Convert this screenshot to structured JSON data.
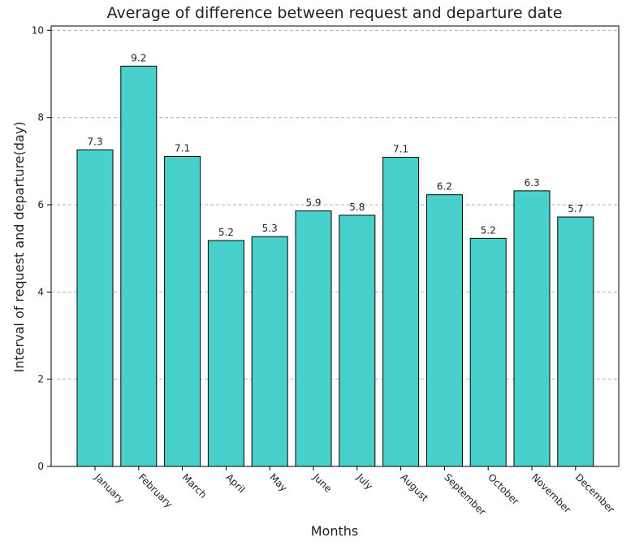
{
  "chart_data": {
    "type": "bar",
    "title": "Average of difference between request and departure date",
    "xlabel": "Months",
    "ylabel": "Interval of request and departure(day)",
    "categories": [
      "January",
      "February",
      "March",
      "April",
      "May",
      "June",
      "July",
      "August",
      "September",
      "October",
      "November",
      "December"
    ],
    "values": [
      7.26,
      9.18,
      7.11,
      5.18,
      5.27,
      5.86,
      5.76,
      7.09,
      6.23,
      5.23,
      6.32,
      5.72
    ],
    "value_labels": [
      "7.3",
      "9.2",
      "7.1",
      "5.2",
      "5.3",
      "5.9",
      "5.8",
      "7.1",
      "6.2",
      "5.2",
      "6.3",
      "5.7"
    ],
    "ylim": [
      0,
      10.1
    ],
    "yticks": [
      0,
      2,
      4,
      6,
      8,
      10
    ],
    "grid": true,
    "bar_color": "#48d1cc",
    "edge_color": "#000000"
  }
}
